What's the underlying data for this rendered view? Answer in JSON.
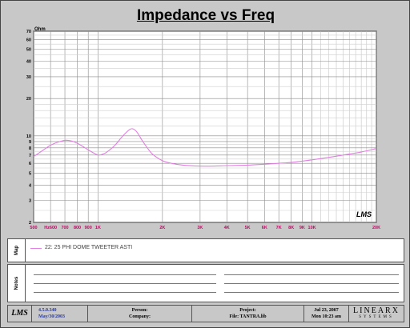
{
  "chart_data": {
    "type": "line",
    "title": "Impedance vs Freq",
    "ylabel": "Ohm",
    "xscale": "log",
    "yscale": "log",
    "xlim": [
      500,
      20000
    ],
    "ylim": [
      2,
      70
    ],
    "xticks": [
      {
        "v": 500,
        "l": "500"
      },
      {
        "v": 600,
        "l": "Hz600"
      },
      {
        "v": 700,
        "l": "700"
      },
      {
        "v": 800,
        "l": "800"
      },
      {
        "v": 900,
        "l": "900"
      },
      {
        "v": 1000,
        "l": "1K"
      },
      {
        "v": 2000,
        "l": "2K"
      },
      {
        "v": 3000,
        "l": "3K"
      },
      {
        "v": 4000,
        "l": "4K"
      },
      {
        "v": 5000,
        "l": "5K"
      },
      {
        "v": 6000,
        "l": "6K"
      },
      {
        "v": 7000,
        "l": "7K"
      },
      {
        "v": 8000,
        "l": "8K"
      },
      {
        "v": 9000,
        "l": "9K"
      },
      {
        "v": 10000,
        "l": "10K"
      },
      {
        "v": 20000,
        "l": "20K"
      }
    ],
    "yticks": [
      2,
      3,
      4,
      5,
      6,
      7,
      8,
      9,
      10,
      20,
      30,
      40,
      50,
      60,
      70
    ],
    "grid": true,
    "watermark": "LMS",
    "series": [
      {
        "name": "22: 25 PHI DOME TWEETER ASTI",
        "color": "#e080e0",
        "x": [
          500,
          550,
          600,
          650,
          700,
          750,
          800,
          850,
          900,
          950,
          1000,
          1050,
          1100,
          1200,
          1300,
          1400,
          1450,
          1500,
          1550,
          1600,
          1700,
          1800,
          2000,
          2200,
          2500,
          3000,
          3500,
          4000,
          5000,
          6000,
          7000,
          8000,
          9000,
          10000,
          12000,
          14000,
          17000,
          20000
        ],
        "y": [
          6.8,
          7.6,
          8.4,
          8.9,
          9.2,
          9.1,
          8.7,
          8.2,
          7.7,
          7.3,
          7.0,
          7.1,
          7.4,
          8.4,
          9.9,
          11.2,
          11.4,
          11.0,
          10.2,
          9.3,
          8.0,
          7.1,
          6.3,
          6.0,
          5.8,
          5.7,
          5.7,
          5.75,
          5.8,
          5.9,
          6.0,
          6.1,
          6.25,
          6.4,
          6.7,
          7.0,
          7.4,
          7.9
        ]
      }
    ]
  },
  "legend": {
    "section_label": "Map"
  },
  "notes": {
    "section_label": "Notes"
  },
  "footer": {
    "logo": "LMS",
    "version": "4.5.0.340",
    "version_date": "May/30/2003",
    "person_label": "Person:",
    "company_label": "Company:",
    "project_label": "Project:",
    "file_label": "File:",
    "file_name": "TANTRA.lib",
    "date": "Jul 23, 2007",
    "time": "Mon 10:23 am",
    "brand": "LINEARX",
    "brand_sub": "SYSTEMS"
  },
  "colors": {
    "curve": "#e080e0",
    "grid": "#999999",
    "tick_labels": "#b01060"
  }
}
